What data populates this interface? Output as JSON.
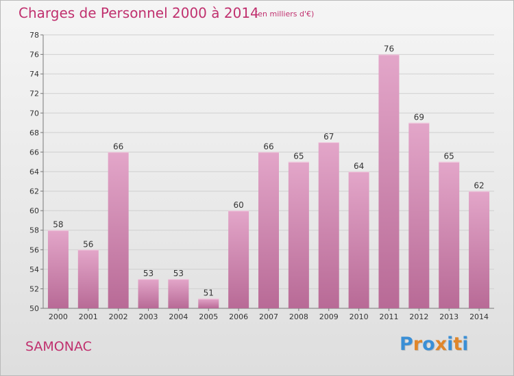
{
  "title": "Charges de Personnel 2000 à 2014",
  "subtitle": "(en milliers d'€)",
  "commune": "SAMONAC",
  "brand": {
    "text": "Proxiti",
    "letter_colors": [
      "#3a8fd6",
      "#e0862a",
      "#3a8fd6",
      "#e0862a",
      "#3a8fd6",
      "#e0862a",
      "#3a8fd6"
    ]
  },
  "colors": {
    "title": "#c0306e",
    "bar_light": "#e3a6c9",
    "bar_dark": "#b86a96",
    "grid": "#cfcfcf"
  },
  "chart_data": {
    "type": "bar",
    "title": "Charges de Personnel 2000 à 2014",
    "subtitle": "(en milliers d'€)",
    "categories": [
      "2000",
      "2001",
      "2002",
      "2003",
      "2004",
      "2005",
      "2006",
      "2007",
      "2008",
      "2009",
      "2010",
      "2011",
      "2012",
      "2013",
      "2014"
    ],
    "values": [
      58,
      56,
      66,
      53,
      53,
      51,
      60,
      66,
      65,
      67,
      64,
      76,
      69,
      65,
      62
    ],
    "ylim": [
      50,
      78
    ],
    "yticks": [
      50,
      52,
      54,
      56,
      58,
      60,
      62,
      64,
      66,
      68,
      70,
      72,
      74,
      76,
      78
    ],
    "grid": true,
    "legend": "none"
  }
}
